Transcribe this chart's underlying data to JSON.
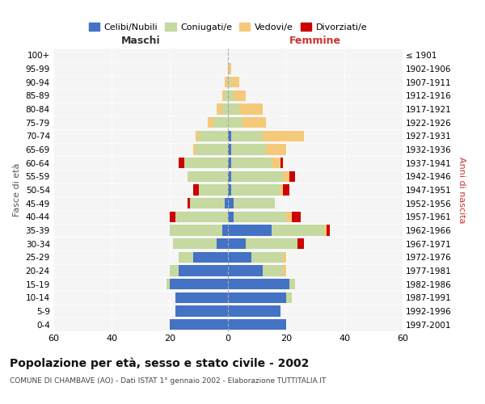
{
  "age_groups": [
    "0-4",
    "5-9",
    "10-14",
    "15-19",
    "20-24",
    "25-29",
    "30-34",
    "35-39",
    "40-44",
    "45-49",
    "50-54",
    "55-59",
    "60-64",
    "65-69",
    "70-74",
    "75-79",
    "80-84",
    "85-89",
    "90-94",
    "95-99",
    "100+"
  ],
  "birth_years": [
    "1997-2001",
    "1992-1996",
    "1987-1991",
    "1982-1986",
    "1977-1981",
    "1972-1976",
    "1967-1971",
    "1962-1966",
    "1957-1961",
    "1952-1956",
    "1947-1951",
    "1942-1946",
    "1937-1941",
    "1932-1936",
    "1927-1931",
    "1922-1926",
    "1917-1921",
    "1912-1916",
    "1907-1911",
    "1902-1906",
    "≤ 1901"
  ],
  "male": {
    "celibi": [
      20,
      18,
      18,
      20,
      17,
      12,
      4,
      2,
      0,
      1,
      0,
      0,
      0,
      0,
      0,
      0,
      0,
      0,
      0,
      0,
      0
    ],
    "coniugati": [
      0,
      0,
      0,
      1,
      3,
      5,
      15,
      18,
      18,
      12,
      10,
      14,
      15,
      11,
      10,
      5,
      2,
      1,
      0,
      0,
      0
    ],
    "vedovi": [
      0,
      0,
      0,
      0,
      0,
      0,
      0,
      0,
      0,
      0,
      0,
      0,
      0,
      1,
      1,
      2,
      2,
      1,
      1,
      0,
      0
    ],
    "divorziati": [
      0,
      0,
      0,
      0,
      0,
      0,
      0,
      0,
      2,
      1,
      2,
      0,
      2,
      0,
      0,
      0,
      0,
      0,
      0,
      0,
      0
    ]
  },
  "female": {
    "nubili": [
      20,
      18,
      20,
      21,
      12,
      8,
      6,
      15,
      2,
      2,
      1,
      1,
      1,
      1,
      1,
      0,
      0,
      0,
      0,
      0,
      0
    ],
    "coniugate": [
      0,
      0,
      2,
      2,
      7,
      11,
      18,
      18,
      18,
      14,
      17,
      18,
      14,
      12,
      11,
      5,
      4,
      2,
      1,
      0,
      0
    ],
    "vedove": [
      0,
      0,
      0,
      0,
      1,
      1,
      0,
      1,
      2,
      0,
      1,
      2,
      3,
      7,
      14,
      8,
      8,
      4,
      3,
      1,
      0
    ],
    "divorziate": [
      0,
      0,
      0,
      0,
      0,
      0,
      2,
      1,
      3,
      0,
      2,
      2,
      1,
      0,
      0,
      0,
      0,
      0,
      0,
      0,
      0
    ]
  },
  "colors": {
    "celibi": "#4472c4",
    "coniugati": "#c5d9a0",
    "vedovi": "#f5c97a",
    "divorziati": "#cc0000"
  },
  "xlim": 60,
  "title": "Popolazione per età, sesso e stato civile - 2002",
  "subtitle": "COMUNE DI CHAMBAVE (AO) - Dati ISTAT 1° gennaio 2002 - Elaborazione TUTTITALIA.IT",
  "xlabel_left": "Maschi",
  "xlabel_right": "Femmine",
  "ylabel_left": "Fasce di età",
  "ylabel_right": "Anni di nascita",
  "legend_labels": [
    "Celibi/Nubili",
    "Coniugati/e",
    "Vedovi/e",
    "Divorziati/e"
  ]
}
